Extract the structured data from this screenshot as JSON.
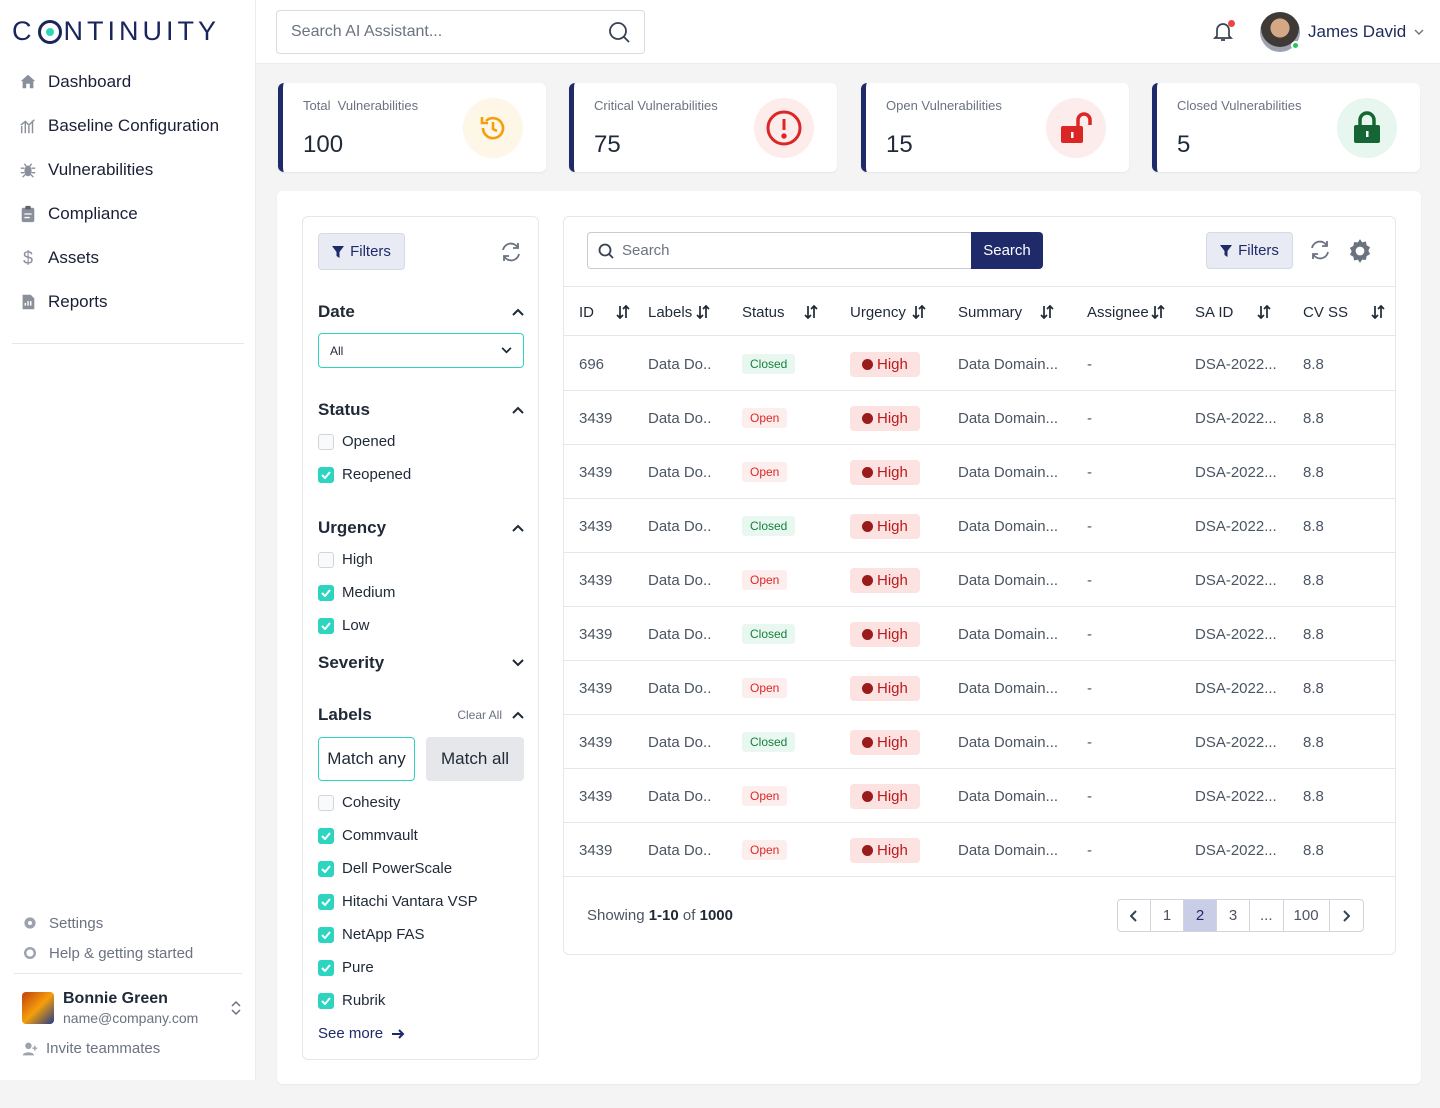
{
  "app": {
    "logo_text": "C NTINUITY"
  },
  "sidebar": {
    "items": [
      {
        "label": "Dashboard",
        "icon": "home-icon"
      },
      {
        "label": "Baseline Configuration",
        "icon": "chart-icon"
      },
      {
        "label": "Vulnerabilities",
        "icon": "bug-icon"
      },
      {
        "label": "Compliance",
        "icon": "clipboard-icon"
      },
      {
        "label": "Assets",
        "icon": "dollar-icon"
      },
      {
        "label": "Reports",
        "icon": "report-icon"
      }
    ],
    "footer": {
      "settings": "Settings",
      "help": "Help & getting started",
      "user_name": "Bonnie Green",
      "user_email": "name@company.com",
      "invite": "Invite teammates"
    }
  },
  "topbar": {
    "search_placeholder": "Search AI Assistant...",
    "user_name": "James David"
  },
  "stats": [
    {
      "label": "Total  Vulnerabilities",
      "value": "100",
      "icon": "history-icon",
      "color": "#f59e0b"
    },
    {
      "label": "Critical Vulnerabilities",
      "value": "75",
      "icon": "alert-icon",
      "color": "#dc2626"
    },
    {
      "label": "Open Vulnerabilities",
      "value": "15",
      "icon": "unlock-icon",
      "color": "#dc2626"
    },
    {
      "label": "Closed Vulnerabilities",
      "value": "5",
      "icon": "lock-icon",
      "color": "#166534"
    }
  ],
  "filters": {
    "button": "Filters",
    "date": {
      "title": "Date",
      "selected": "All"
    },
    "status": {
      "title": "Status",
      "options": [
        {
          "label": "Opened",
          "checked": false
        },
        {
          "label": "Reopened",
          "checked": true
        }
      ]
    },
    "urgency": {
      "title": "Urgency",
      "options": [
        {
          "label": "High",
          "checked": false
        },
        {
          "label": "Medium",
          "checked": true
        },
        {
          "label": "Low",
          "checked": true
        }
      ]
    },
    "severity": {
      "title": "Severity"
    },
    "labels": {
      "title": "Labels",
      "clear": "Clear All",
      "match_any": "Match any",
      "match_all": "Match all",
      "options": [
        {
          "label": "Cohesity",
          "checked": false
        },
        {
          "label": "Commvault",
          "checked": true
        },
        {
          "label": "Dell PowerScale",
          "checked": true
        },
        {
          "label": "Hitachi Vantara VSP",
          "checked": true
        },
        {
          "label": "NetApp FAS",
          "checked": true
        },
        {
          "label": "Pure",
          "checked": true
        },
        {
          "label": "Rubrik",
          "checked": true
        }
      ],
      "see_more": "See more"
    }
  },
  "table": {
    "search_placeholder": "Search",
    "search_button": "Search",
    "filters_button": "Filters",
    "columns": [
      "ID",
      "Labels",
      "Status",
      "Urgency",
      "Summary",
      "Assignee",
      "SA ID",
      "CV SS"
    ],
    "rows": [
      {
        "id": "696",
        "labels": "Data Do..",
        "status": "Closed",
        "urgency": "High",
        "summary": "Data Domain...",
        "assignee": "-",
        "said": "DSA-2022...",
        "cvss": "8.8"
      },
      {
        "id": "3439",
        "labels": "Data Do..",
        "status": "Open",
        "urgency": "High",
        "summary": "Data Domain...",
        "assignee": "-",
        "said": "DSA-2022...",
        "cvss": "8.8"
      },
      {
        "id": "3439",
        "labels": "Data Do..",
        "status": "Open",
        "urgency": "High",
        "summary": "Data Domain...",
        "assignee": "-",
        "said": "DSA-2022...",
        "cvss": "8.8"
      },
      {
        "id": "3439",
        "labels": "Data Do..",
        "status": "Closed",
        "urgency": "High",
        "summary": "Data Domain...",
        "assignee": "-",
        "said": "DSA-2022...",
        "cvss": "8.8"
      },
      {
        "id": "3439",
        "labels": "Data Do..",
        "status": "Open",
        "urgency": "High",
        "summary": "Data Domain...",
        "assignee": "-",
        "said": "DSA-2022...",
        "cvss": "8.8"
      },
      {
        "id": "3439",
        "labels": "Data Do..",
        "status": "Closed",
        "urgency": "High",
        "summary": "Data Domain...",
        "assignee": "-",
        "said": "DSA-2022...",
        "cvss": "8.8"
      },
      {
        "id": "3439",
        "labels": "Data Do..",
        "status": "Open",
        "urgency": "High",
        "summary": "Data Domain...",
        "assignee": "-",
        "said": "DSA-2022...",
        "cvss": "8.8"
      },
      {
        "id": "3439",
        "labels": "Data Do..",
        "status": "Closed",
        "urgency": "High",
        "summary": "Data Domain...",
        "assignee": "-",
        "said": "DSA-2022...",
        "cvss": "8.8"
      },
      {
        "id": "3439",
        "labels": "Data Do..",
        "status": "Open",
        "urgency": "High",
        "summary": "Data Domain...",
        "assignee": "-",
        "said": "DSA-2022...",
        "cvss": "8.8"
      },
      {
        "id": "3439",
        "labels": "Data Do..",
        "status": "Open",
        "urgency": "High",
        "summary": "Data Domain...",
        "assignee": "-",
        "said": "DSA-2022...",
        "cvss": "8.8"
      }
    ],
    "footer": {
      "showing": "Showing",
      "range": "1-10",
      "of": "of",
      "total": "1000"
    },
    "pagination": {
      "pages": [
        "1",
        "2",
        "3",
        "...",
        "100"
      ],
      "current": "2"
    }
  }
}
